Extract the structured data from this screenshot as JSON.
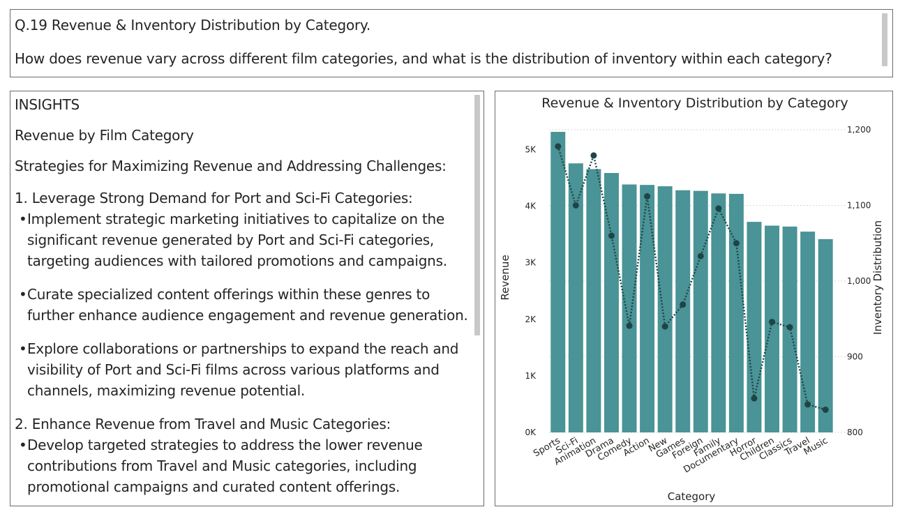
{
  "question": {
    "title": "Q.19 Revenue & Inventory Distribution by Category.",
    "text": "How does revenue vary across different film categories, and what is the distribution of inventory within each category?"
  },
  "insights": {
    "heading": "INSIGHTS",
    "subheading": "Revenue by Film Category",
    "strategies_title": "Strategies for Maximizing Revenue and Addressing Challenges:",
    "point1_title": "1. Leverage Strong Demand for Port and Sci-Fi Categories:",
    "point1_bullets": [
      "Implement strategic marketing initiatives to capitalize on the\nsignificant revenue generated by Port and Sci-Fi categories,\ntargeting audiences with tailored promotions and campaigns.",
      "Curate specialized content offerings within these genres to\nfurther enhance audience engagement and revenue generation.",
      "Explore collaborations or partnerships to expand the reach and\nvisibility of Port and Sci-Fi films across various platforms and\nchannels, maximizing revenue potential."
    ],
    "point2_title": "2. Enhance Revenue from Travel and Music Categories:",
    "point2_bullets": [
      "Develop targeted strategies to address the lower revenue\ncontributions from Travel and Music categories, including\npromotional campaigns and curated content offerings."
    ],
    "bullet_char": "•"
  },
  "chart_data": {
    "type": "bar",
    "title": "Revenue & Inventory Distribution by Category",
    "xlabel": "Category",
    "ylabel": "Revenue",
    "y2label": "Inventory Distribution",
    "categories": [
      "Sports",
      "Sci-Fi",
      "Animation",
      "Drama",
      "Comedy",
      "Action",
      "New",
      "Games",
      "Foreign",
      "Family",
      "Documentary",
      "Horror",
      "Children",
      "Classics",
      "Travel",
      "Music"
    ],
    "series": [
      {
        "name": "Revenue",
        "kind": "bar",
        "axis": "left",
        "values": [
          5314,
          4757,
          4656,
          4587,
          4384,
          4376,
          4352,
          4282,
          4271,
          4226,
          4218,
          3723,
          3656,
          3640,
          3550,
          3418
        ]
      },
      {
        "name": "Inventory Distribution",
        "kind": "line",
        "axis": "right",
        "values": [
          1178,
          1100,
          1166,
          1060,
          941,
          1112,
          940,
          969,
          1033,
          1096,
          1050,
          845,
          946,
          939,
          837,
          830
        ]
      }
    ],
    "ylim": [
      0,
      5500
    ],
    "y_ticks": [
      0,
      1000,
      2000,
      3000,
      4000,
      5000
    ],
    "y_tick_labels": [
      "0K",
      "1K",
      "2K",
      "3K",
      "4K",
      "5K"
    ],
    "y2lim": [
      800,
      1200
    ],
    "y2_ticks": [
      800,
      900,
      1000,
      1100,
      1200
    ],
    "y2_tick_labels": [
      "800",
      "900",
      "1,000",
      "1,100",
      "1,200"
    ],
    "colors": {
      "bar": "#4a9396",
      "line": "#1e4445",
      "grid": "#c8c8c8"
    },
    "grid": true
  }
}
